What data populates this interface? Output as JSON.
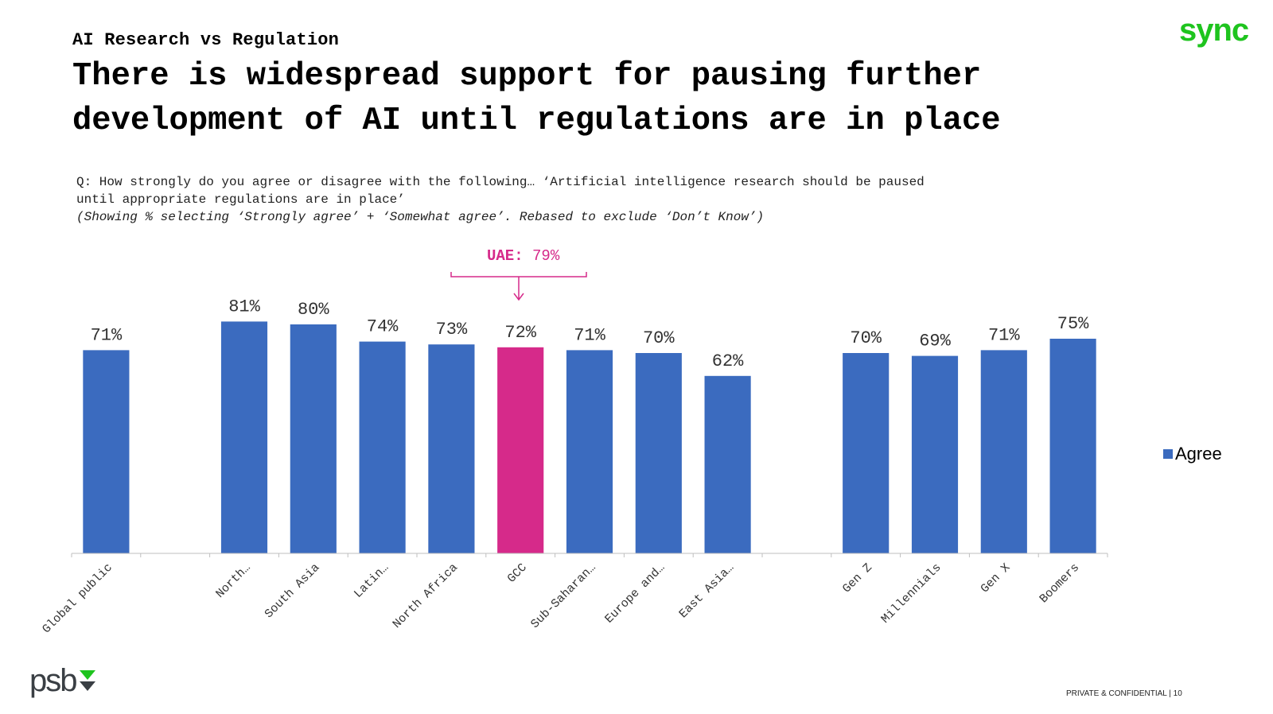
{
  "header": {
    "kicker": "AI Research vs Regulation",
    "title": "There is widespread support for pausing further development of AI until regulations are in place",
    "brand_logo": "sync",
    "brand_color": "#1ec41e"
  },
  "question": {
    "text": "Q: How strongly do you agree or disagree with the following… ‘Artificial intelligence research should be paused until appropriate regulations are in place’",
    "note": "(Showing % selecting ‘Strongly agree’ + ‘Somewhat agree’. Rebased to exclude ‘Don’t Know’)"
  },
  "callout": {
    "label": "UAE:",
    "value": "79%",
    "color": "#d62a8a"
  },
  "legend": {
    "label": "Agree",
    "color": "#3b6bbf"
  },
  "footer": {
    "text": "PRIVATE & CONFIDENTIAL | 10",
    "logo": "psb"
  },
  "chart_data": {
    "type": "bar",
    "categories": [
      "Global public",
      "",
      "North…",
      "South Asia",
      "Latin…",
      "North Africa",
      "GCC",
      "Sub-Saharan…",
      "Europe and…",
      "East Asia…",
      "",
      "Gen Z",
      "Millennials",
      "Gen X",
      "Boomers"
    ],
    "series": [
      {
        "name": "Agree",
        "values": [
          71,
          null,
          81,
          80,
          74,
          73,
          72,
          71,
          70,
          62,
          null,
          70,
          69,
          71,
          75
        ]
      }
    ],
    "data_labels": [
      "71%",
      "",
      "81%",
      "80%",
      "74%",
      "73%",
      "72%",
      "71%",
      "70%",
      "62%",
      "",
      "70%",
      "69%",
      "71%",
      "75%"
    ],
    "highlight_category": "GCC",
    "highlight_color": "#d62a8a",
    "bar_color": "#3b6bbf",
    "ylim": [
      0,
      100
    ],
    "grid": false,
    "legend_position": "right"
  }
}
